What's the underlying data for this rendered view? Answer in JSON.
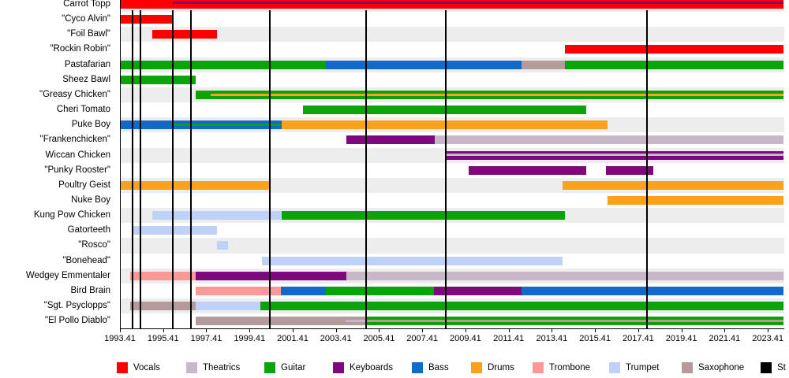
{
  "chart_data": {
    "type": "timeline",
    "description": "Band members timeline gantt chart",
    "axis": {
      "start": 1993.41,
      "end": 2024.15,
      "ticks": [
        1993.41,
        1995.41,
        1997.41,
        1999.41,
        2001.41,
        2003.41,
        2005.41,
        2007.41,
        2009.41,
        2011.41,
        2013.41,
        2015.41,
        2017.41,
        2019.41,
        2021.41,
        2023.41
      ]
    },
    "colors": {
      "vocals": "#fe0000",
      "theatrics": "#c8b7c8",
      "guitar": "#0aa30a",
      "keyboards": "#7d0a7d",
      "bass": "#1169c8",
      "drums": "#fba11c",
      "trombone": "#fb9999",
      "trumpet": "#bdd2f6",
      "saxophone": "#b39b9b",
      "studio": "#000000"
    },
    "legend": [
      {
        "label": "Vocals",
        "role": "vocals"
      },
      {
        "label": "Theatrics",
        "role": "theatrics"
      },
      {
        "label": "Guitar",
        "role": "guitar"
      },
      {
        "label": "Keyboards",
        "role": "keyboards"
      },
      {
        "label": "Bass",
        "role": "bass"
      },
      {
        "label": "Drums",
        "role": "drums"
      },
      {
        "label": "Trombone",
        "role": "trombone"
      },
      {
        "label": "Trumpet",
        "role": "trumpet"
      },
      {
        "label": "Saxophone",
        "role": "saxophone"
      },
      {
        "label": "St",
        "role": "studio"
      }
    ],
    "album_release_lines": [
      1994.0,
      1994.35,
      1995.85,
      1996.7,
      2000.35,
      2004.8,
      2008.5,
      2017.8
    ],
    "members": [
      {
        "name": "Carrot Topp",
        "segments": [
          {
            "role": "vocals",
            "from": 1993.41,
            "till": 2024.15
          }
        ],
        "stripes": [
          {
            "role": "keyboards",
            "from": 1995.85,
            "till": 2024.15,
            "pos": "top"
          }
        ]
      },
      {
        "name": "\"Cyco Alvin\"",
        "segments": [
          {
            "role": "vocals",
            "from": 1993.41,
            "till": 1995.9
          }
        ],
        "stripes": []
      },
      {
        "name": "\"Foil Bawl\"",
        "segments": [
          {
            "role": "vocals",
            "from": 1994.9,
            "till": 1997.9
          }
        ],
        "stripes": []
      },
      {
        "name": "\"Rockin Robin\"",
        "segments": [
          {
            "role": "vocals",
            "from": 2014.0,
            "till": 2024.15
          }
        ],
        "stripes": []
      },
      {
        "name": "Pastafarian",
        "segments": [
          {
            "role": "guitar",
            "from": 1993.41,
            "till": 2002.95
          },
          {
            "role": "bass",
            "from": 2002.95,
            "till": 2012.0
          },
          {
            "role": "saxophone",
            "from": 2012.0,
            "till": 2014.0
          },
          {
            "role": "guitar",
            "from": 2014.0,
            "till": 2024.15
          }
        ],
        "stripes": []
      },
      {
        "name": "Sheez Bawl",
        "segments": [
          {
            "role": "guitar",
            "from": 1993.41,
            "till": 1996.9
          }
        ],
        "stripes": []
      },
      {
        "name": "\"Greasy Chicken\"",
        "segments": [
          {
            "role": "guitar",
            "from": 1996.9,
            "till": 2024.15
          }
        ],
        "stripes": [
          {
            "role": "drums",
            "from": 1997.6,
            "till": 2024.15,
            "pos": "middle"
          }
        ]
      },
      {
        "name": "Cheri Tomato",
        "segments": [
          {
            "role": "guitar",
            "from": 2001.9,
            "till": 2015.0
          }
        ],
        "stripes": []
      },
      {
        "name": "Puke Boy",
        "segments": [
          {
            "role": "bass",
            "from": 1993.41,
            "till": 2000.9
          },
          {
            "role": "drums",
            "from": 2000.9,
            "till": 2016.0
          }
        ],
        "stripes": [
          {
            "role": "guitar",
            "from": 1995.9,
            "till": 2000.9,
            "pos": "middle"
          }
        ]
      },
      {
        "name": "\"Frankenchicken\"",
        "segments": [
          {
            "role": "keyboards",
            "from": 2003.9,
            "till": 2008.0
          },
          {
            "role": "theatrics",
            "from": 2008.0,
            "till": 2024.15
          }
        ],
        "stripes": []
      },
      {
        "name": "Wiccan Chicken",
        "segments": [
          {
            "role": "keyboards",
            "from": 2008.5,
            "till": 2024.15
          }
        ],
        "stripes": [
          {
            "role": "theatrics",
            "from": 2008.5,
            "till": 2024.15,
            "pos": "upper"
          }
        ]
      },
      {
        "name": "\"Punky Rooster\"",
        "segments": [
          {
            "role": "keyboards",
            "from": 2009.55,
            "till": 2015.0
          },
          {
            "role": "keyboards",
            "from": 2015.9,
            "till": 2018.1
          }
        ],
        "stripes": []
      },
      {
        "name": "Poultry Geist",
        "segments": [
          {
            "role": "drums",
            "from": 1993.41,
            "till": 2000.35
          },
          {
            "role": "drums",
            "from": 2013.9,
            "till": 2024.15
          }
        ],
        "stripes": []
      },
      {
        "name": "Nuke Boy",
        "segments": [
          {
            "role": "drums",
            "from": 2016.0,
            "till": 2024.15
          }
        ],
        "stripes": []
      },
      {
        "name": "Kung Pow Chicken",
        "segments": [
          {
            "role": "trumpet",
            "from": 1994.9,
            "till": 2000.9
          },
          {
            "role": "guitar",
            "from": 2000.9,
            "till": 2014.0
          }
        ],
        "stripes": []
      },
      {
        "name": "Gatorteeth",
        "segments": [
          {
            "role": "trumpet",
            "from": 1994.0,
            "till": 1997.9
          }
        ],
        "stripes": []
      },
      {
        "name": "\"Rosco\"",
        "segments": [
          {
            "role": "trumpet",
            "from": 1997.9,
            "till": 1998.4
          }
        ],
        "stripes": []
      },
      {
        "name": "\"Bonehead\"",
        "segments": [
          {
            "role": "trumpet",
            "from": 2000.0,
            "till": 2013.9
          }
        ],
        "stripes": []
      },
      {
        "name": "Wedgey Emmentaler",
        "segments": [
          {
            "role": "trombone",
            "from": 1993.9,
            "till": 1996.9
          },
          {
            "role": "keyboards",
            "from": 1996.9,
            "till": 2003.9
          },
          {
            "role": "theatrics",
            "from": 2003.9,
            "till": 2024.15
          }
        ],
        "stripes": []
      },
      {
        "name": "Bird Brain",
        "segments": [
          {
            "role": "trombone",
            "from": 1996.9,
            "till": 2000.85
          },
          {
            "role": "bass",
            "from": 2000.85,
            "till": 2002.95
          },
          {
            "role": "guitar",
            "from": 2002.95,
            "till": 2007.95
          },
          {
            "role": "keyboards",
            "from": 2007.95,
            "till": 2012.0
          },
          {
            "role": "bass",
            "from": 2012.0,
            "till": 2024.15
          }
        ],
        "stripes": []
      },
      {
        "name": "\"Sgt. Psyclopps\"",
        "segments": [
          {
            "role": "saxophone",
            "from": 1993.9,
            "till": 1996.9
          },
          {
            "role": "trumpet",
            "from": 1996.9,
            "till": 1999.9
          },
          {
            "role": "guitar",
            "from": 1999.9,
            "till": 2024.15
          }
        ],
        "stripes": []
      },
      {
        "name": "\"El Pollo Diablo\"",
        "segments": [
          {
            "role": "saxophone",
            "from": 1996.9,
            "till": 2004.8
          },
          {
            "role": "guitar",
            "from": 2004.8,
            "till": 2024.15
          }
        ],
        "stripes": [
          {
            "role": "theatrics",
            "from": 2003.85,
            "till": 2004.8,
            "pos": "middle"
          },
          {
            "role": "saxophone",
            "from": 2004.8,
            "till": 2024.15,
            "pos": "middle"
          }
        ]
      }
    ]
  }
}
